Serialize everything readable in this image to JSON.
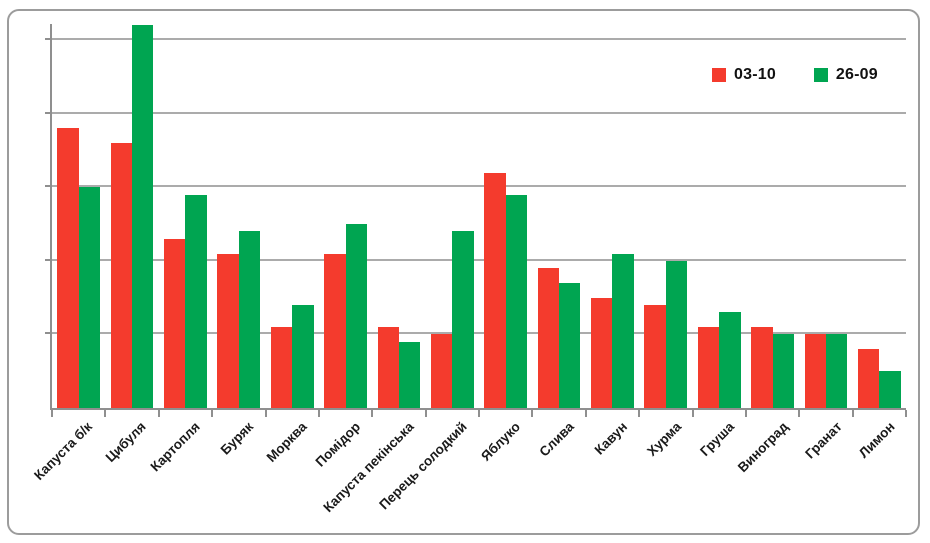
{
  "chart_data": {
    "type": "bar",
    "title": "",
    "xlabel": "",
    "ylabel": "",
    "categories": [
      "Капуста б/к",
      "Цибуля",
      "Картопля",
      "Буряк",
      "Морква",
      "Помідор",
      "Капуста пекінська",
      "Перець солодкий",
      "Яблуко",
      "Слива",
      "Кавун",
      "Хурма",
      "Груша",
      "Виноград",
      "Гранат",
      "Лимон"
    ],
    "series": [
      {
        "name": "03-10",
        "color": "#f43b2d",
        "values": [
          38,
          36,
          23,
          21,
          11,
          21,
          11,
          10,
          32,
          19,
          15,
          14,
          11,
          11,
          10,
          8
        ]
      },
      {
        "name": "26-09",
        "color": "#00a551",
        "values": [
          30,
          52,
          29,
          24,
          14,
          25,
          9,
          24,
          29,
          17,
          21,
          20,
          13,
          10,
          10,
          5
        ]
      }
    ],
    "ylim": [
      0,
      52.2
    ],
    "gridline_interval": 10,
    "y_tick_labels_visible": false,
    "grid": true,
    "legend_position": "top-right",
    "x_labels_rotation_deg": 45
  },
  "style_colors": {
    "bar_red": "#f43b2d",
    "bar_green": "#00a551",
    "gridline": "#ababab",
    "axis": "#8f8f8f",
    "frame_border": "#9c9c9c",
    "text": "#1a1a1a"
  }
}
